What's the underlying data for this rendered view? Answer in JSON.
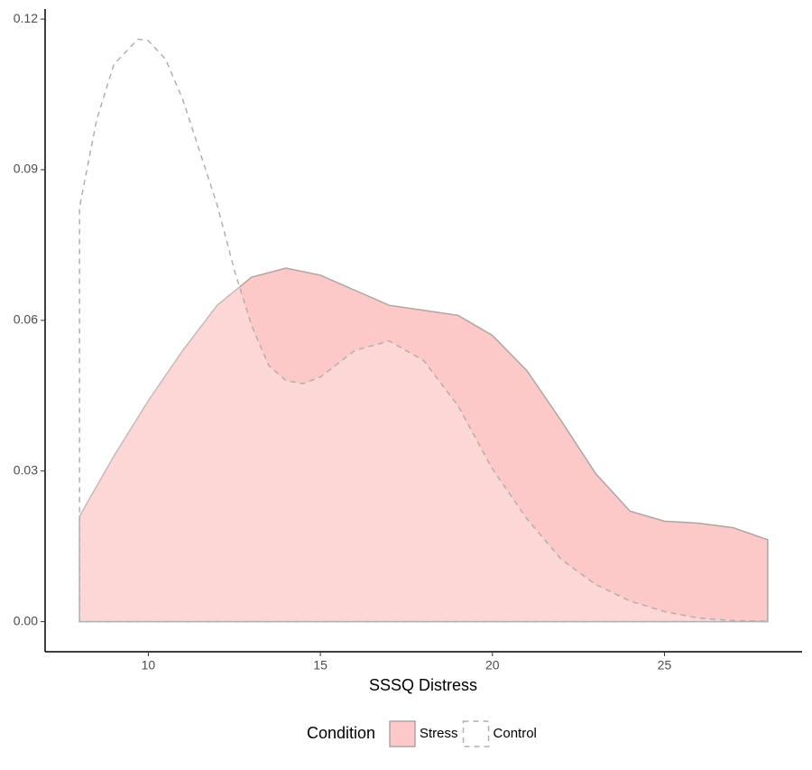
{
  "chart_data": {
    "type": "density",
    "x_label": "SSSQ Distress",
    "xlim": [
      7,
      29
    ],
    "xticks": [
      10,
      15,
      20,
      25
    ],
    "ylim": [
      -0.006,
      0.122
    ],
    "yticks": [
      {
        "value": 0,
        "label": "0.00"
      },
      0.03,
      0.06,
      0.09,
      0.12
    ],
    "grid": false,
    "legend_position": "bottom",
    "legend_title": "Condition",
    "series": [
      {
        "name": "Stress",
        "color": "#fcc8c8",
        "line_color": "#b0a4a4",
        "dashed": false,
        "x": [
          8,
          9,
          10,
          11,
          12,
          13,
          14,
          15,
          16,
          17,
          18,
          19,
          20,
          21,
          22,
          23,
          24,
          25,
          26,
          27,
          28
        ],
        "values": [
          0.021,
          0.033,
          0.044,
          0.054,
          0.063,
          0.0686,
          0.0704,
          0.069,
          0.066,
          0.063,
          0.062,
          0.061,
          0.057,
          0.05,
          0.04,
          0.0295,
          0.022,
          0.02,
          0.0196,
          0.0187,
          0.0163
        ]
      },
      {
        "name": "Control",
        "color": "#ffffff",
        "line_color": "#b0b0b0",
        "dashed": true,
        "x": [
          8,
          8.5,
          9,
          9.7,
          10,
          10.5,
          11,
          12,
          12.5,
          13,
          13.5,
          14,
          14.5,
          15,
          16,
          17,
          18,
          19,
          20,
          21,
          22,
          23,
          24,
          25,
          26,
          27,
          28
        ],
        "values": [
          0.0825,
          0.1,
          0.111,
          0.116,
          0.1157,
          0.112,
          0.104,
          0.083,
          0.07,
          0.059,
          0.051,
          0.048,
          0.0474,
          0.0487,
          0.054,
          0.0559,
          0.052,
          0.043,
          0.0304,
          0.0205,
          0.0124,
          0.0074,
          0.0041,
          0.002,
          0.0007,
          0.0002,
          0.0001
        ]
      }
    ]
  }
}
